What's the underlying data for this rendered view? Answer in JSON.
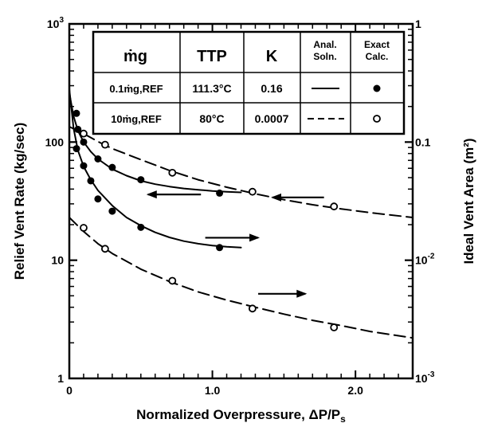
{
  "chart_data": {
    "type": "line",
    "x_axis": {
      "label": "Normalized Overpressure, ΔP/Ps",
      "range": [
        0,
        2.4
      ],
      "ticks": [
        {
          "value": 0,
          "label": "0"
        },
        {
          "value": 1.0,
          "label": "1.0"
        },
        {
          "value": 2.0,
          "label": "2.0"
        }
      ]
    },
    "y_axis_left": {
      "label": "Relief Vent Rate (kg/sec)",
      "scale": "log",
      "range": [
        1,
        1000
      ],
      "ticks": [
        {
          "value": 1,
          "label": "1"
        },
        {
          "value": 10,
          "label": "10"
        },
        {
          "value": 100,
          "label": "100"
        },
        {
          "value": 1000,
          "label": "10^3"
        }
      ]
    },
    "y_axis_right": {
      "label": "Ideal Vent Area (m²)",
      "scale": "log",
      "range": [
        0.001,
        1
      ],
      "ticks": [
        {
          "value": 0.001,
          "label": "10^-3"
        },
        {
          "value": 0.01,
          "label": "10^-2"
        },
        {
          "value": 0.1,
          "label": "0.1"
        },
        {
          "value": 1,
          "label": "1"
        }
      ]
    },
    "legend": {
      "placement": "top",
      "headers": {
        "mg": "ṁg",
        "ttp": "TTP",
        "k": "K",
        "anal": [
          "Anal.",
          "Soln."
        ],
        "exact": [
          "Exact",
          "Calc."
        ]
      },
      "rows": [
        {
          "mg": "0.1ṁg,REF",
          "ttp": "111.3°C",
          "k": "0.16",
          "line": "solid",
          "marker": "filled-circle"
        },
        {
          "mg": "10ṁg,REF",
          "ttp": "80°C",
          "k": "0.0007",
          "line": "dashed",
          "marker": "open-circle"
        }
      ]
    },
    "series": [
      {
        "case": "0.1ṁg,REF",
        "quantity": "relief vent rate",
        "axis": "left",
        "line": "solid",
        "marker": "filled",
        "line_x": [
          0.0,
          0.03,
          0.06,
          0.1,
          0.15,
          0.2,
          0.3,
          0.4,
          0.5,
          0.6,
          0.7,
          0.8,
          0.9,
          1.0,
          1.1,
          1.2
        ],
        "line_y": [
          260,
          165,
          125,
          100,
          83,
          72,
          59,
          52,
          47,
          44,
          42,
          40.5,
          39.5,
          38.5,
          38,
          37.5
        ],
        "points_x": [
          0.05,
          0.06,
          0.1,
          0.2,
          0.3,
          0.5,
          1.05
        ],
        "points_y": [
          175,
          128,
          100,
          72,
          61,
          48,
          37
        ]
      },
      {
        "case": "0.1ṁg,REF",
        "quantity": "ideal vent area",
        "axis": "right",
        "line": "solid",
        "marker": "filled",
        "line_x": [
          0.0,
          0.03,
          0.06,
          0.1,
          0.15,
          0.2,
          0.3,
          0.4,
          0.5,
          0.6,
          0.7,
          0.8,
          0.9,
          1.0,
          1.1,
          1.2
        ],
        "line_y": [
          0.28,
          0.13,
          0.085,
          0.062,
          0.048,
          0.039,
          0.029,
          0.023,
          0.0196,
          0.0172,
          0.0156,
          0.0145,
          0.0138,
          0.0133,
          0.013,
          0.0128
        ],
        "points_x": [
          0.05,
          0.1,
          0.15,
          0.2,
          0.3,
          0.5,
          1.05
        ],
        "points_y": [
          0.088,
          0.063,
          0.047,
          0.033,
          0.026,
          0.019,
          0.0128
        ]
      },
      {
        "case": "10ṁg,REF",
        "quantity": "relief vent rate",
        "axis": "left",
        "line": "dashed",
        "marker": "open",
        "line_x": [
          0.0,
          0.1,
          0.2,
          0.3,
          0.5,
          0.7,
          0.9,
          1.1,
          1.3,
          1.5,
          1.7,
          1.9,
          2.1,
          2.4
        ],
        "line_y": [
          135,
          118,
          101,
          88,
          71,
          57.5,
          48,
          41.5,
          36.5,
          32.5,
          29.5,
          27.2,
          25.3,
          23
        ],
        "points_x": [
          0.1,
          0.25,
          0.72,
          1.28,
          1.85
        ],
        "points_y": [
          118,
          95,
          55,
          38,
          28.5
        ]
      },
      {
        "case": "10ṁg,REF",
        "quantity": "ideal vent area",
        "axis": "right",
        "line": "dashed",
        "marker": "open",
        "line_x": [
          0.0,
          0.1,
          0.2,
          0.3,
          0.5,
          0.7,
          0.9,
          1.1,
          1.3,
          1.5,
          1.7,
          1.9,
          2.1,
          2.4
        ],
        "line_y": [
          0.023,
          0.0175,
          0.0138,
          0.0114,
          0.0084,
          0.0066,
          0.0054,
          0.0046,
          0.004,
          0.0035,
          0.0031,
          0.0028,
          0.0025,
          0.0022
        ],
        "points_x": [
          0.1,
          0.25,
          0.72,
          1.28,
          1.85
        ],
        "points_y": [
          0.0188,
          0.0125,
          0.0067,
          0.0039,
          0.0027
        ]
      }
    ],
    "annotations": [
      {
        "type": "arrow",
        "direction": "left",
        "x_from": 0.92,
        "x_to": 0.55,
        "y": 36,
        "axis": "left",
        "note": "points to left axis"
      },
      {
        "type": "arrow",
        "direction": "right",
        "x_from": 0.95,
        "x_to": 1.32,
        "y": 0.0155,
        "axis": "right",
        "note": "points to right axis"
      },
      {
        "type": "arrow",
        "direction": "left",
        "x_from": 1.78,
        "x_to": 1.42,
        "y": 34,
        "axis": "left",
        "note": "points to left axis"
      },
      {
        "type": "arrow",
        "direction": "right",
        "x_from": 1.32,
        "x_to": 1.65,
        "y": 0.0052,
        "axis": "right",
        "note": "points to right axis"
      }
    ]
  }
}
